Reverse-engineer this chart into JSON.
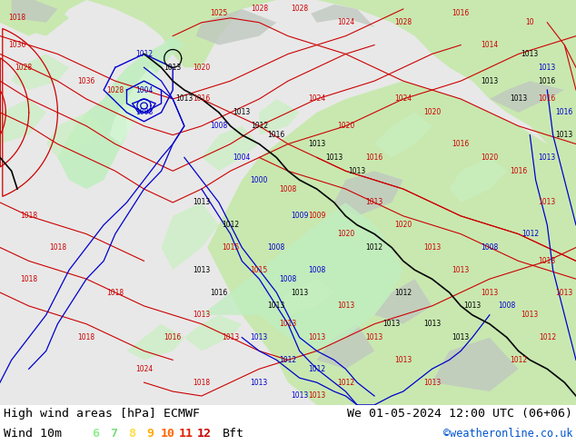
{
  "title_left": "High wind areas [hPa] ECMWF",
  "title_right": "We 01-05-2024 12:00 UTC (06+06)",
  "subtitle_left": "Wind 10m",
  "subtitle_right": "©weatheronline.co.uk",
  "bft_label": "Bft",
  "bft_values": [
    "6",
    "7",
    "8",
    "9",
    "10",
    "11",
    "12"
  ],
  "bft_colors": [
    "#90ee90",
    "#77dd77",
    "#ffdd44",
    "#ffaa00",
    "#ff6600",
    "#dd2200",
    "#cc0000"
  ],
  "figsize": [
    6.34,
    4.9
  ],
  "dpi": 100,
  "map_sea_color": "#dce8f0",
  "land_color": "#c8e8b0",
  "wind_shade_color": "#b0e8b8",
  "wind_shade_color2": "#c8f0c8",
  "gray_terrain_color": "#c0c8c0",
  "isobar_red": "#cc0000",
  "isobar_blue": "#0000cc",
  "isobar_black": "#000000",
  "legend_bg": "#ffffff"
}
